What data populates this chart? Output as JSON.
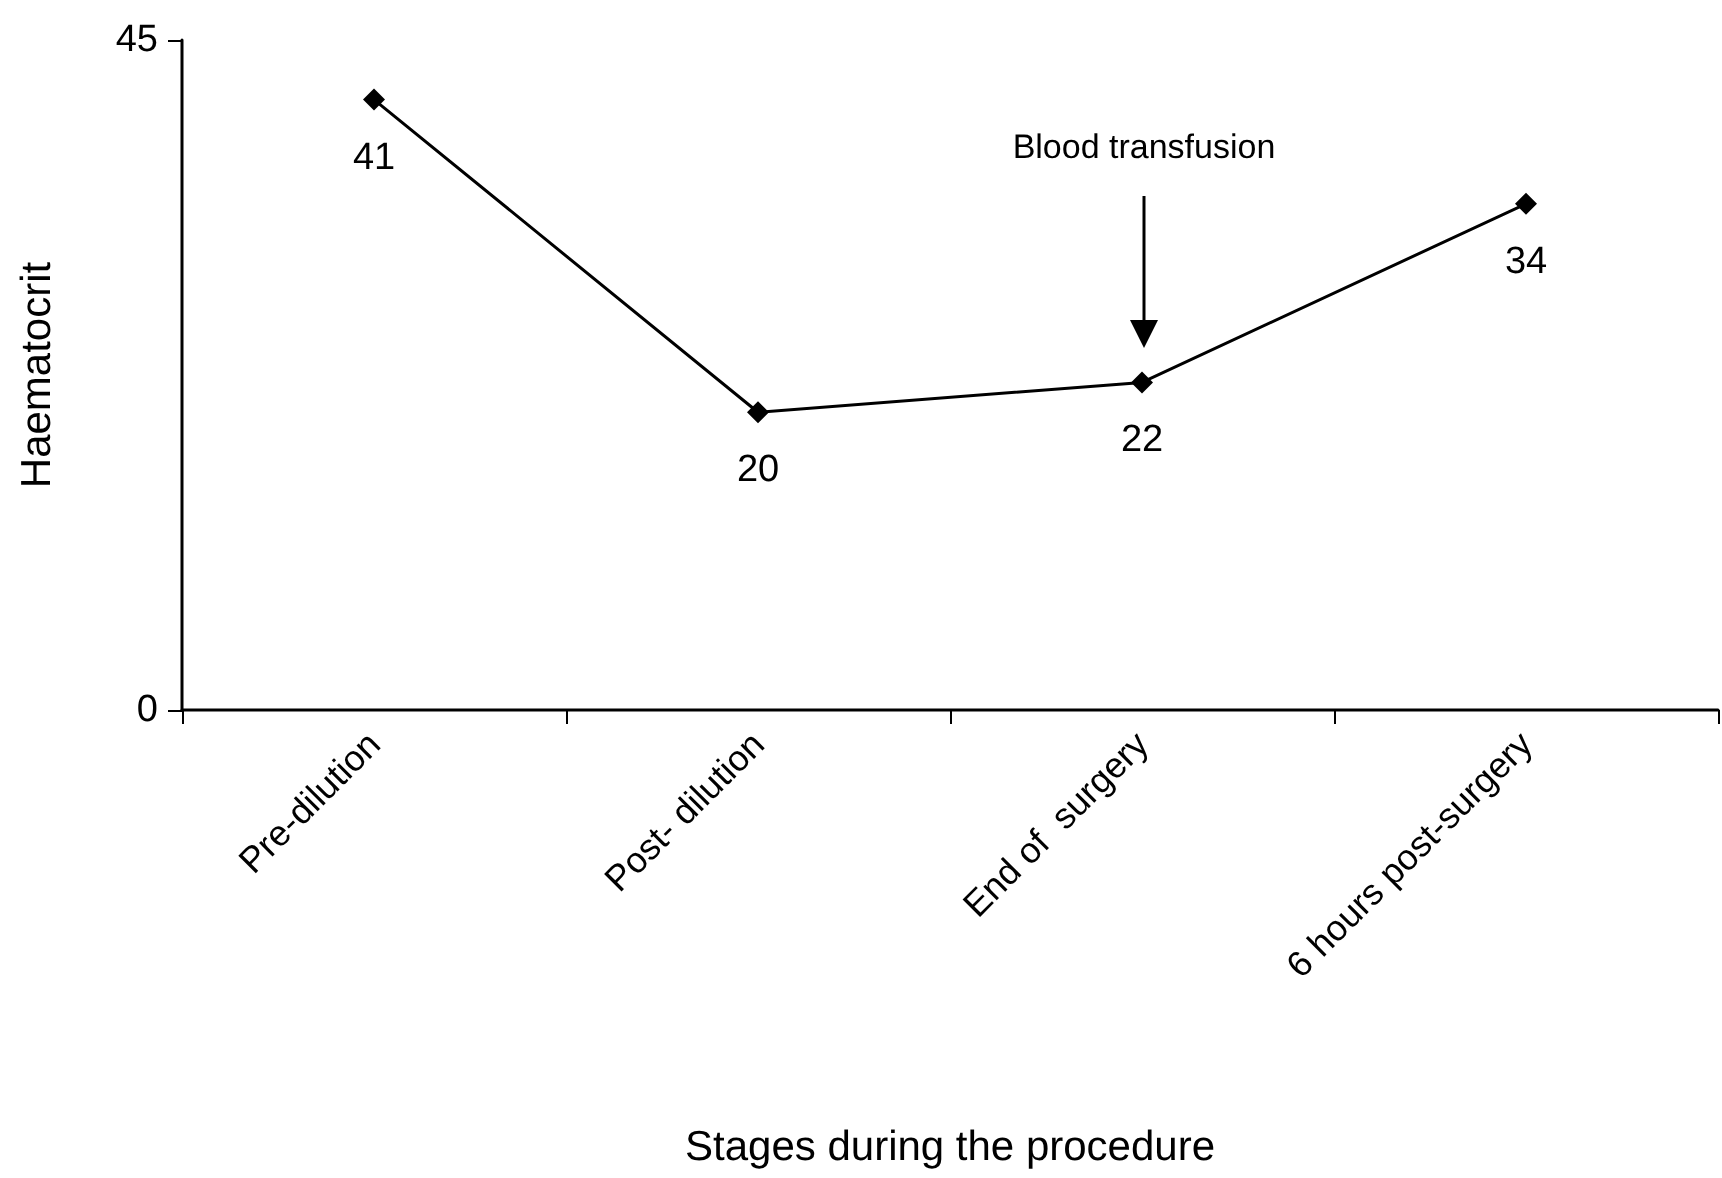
{
  "chart_data": {
    "type": "line",
    "xlabel": "Stages during the procedure",
    "ylabel": "Haematocrit",
    "categories": [
      "Pre-dilution",
      "Post- dilution",
      "End of  surgery",
      "6 hours post-surgery"
    ],
    "series": [
      {
        "color": "#000000",
        "values": [
          41,
          20,
          22,
          34
        ]
      }
    ],
    "ylim": [
      0,
      45
    ],
    "yticks": [
      0,
      45
    ],
    "grid": false,
    "marker": "diamond",
    "line_style": "solid",
    "data_labels": true,
    "annotations": [
      "Blood transfusion"
    ]
  }
}
